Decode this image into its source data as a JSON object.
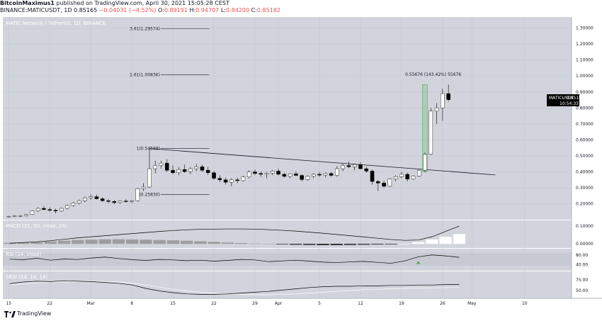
{
  "header": {
    "publisher": "BitcoinMaximus1",
    "published_text": "published on TradingView.com, April 30, 2021 15:05:28 CEST",
    "ticker": "BINANCE:MATICUSDT, 1D",
    "last": "0.85165",
    "change": "−0.04031 (−4.52%)",
    "o_label": "O:",
    "o_value": "0.89191",
    "h_label": "H:",
    "h_value": "0.94707",
    "l_label": "L:",
    "l_value": "0.84200",
    "c_label": "C:",
    "c_value": "0.85182"
  },
  "chart_title": "MATIC Network / TetherUS, 1D, BINANCE",
  "price_badge": {
    "symbol": "MATICUSDT",
    "price": "0.85182",
    "countdown": "10:54:33"
  },
  "indicators": {
    "macd": "MACD (21, 50, close, 24)",
    "rsi": "RSI (14, close)",
    "stoch": "SRSI (14, 14, 14)"
  },
  "footer": {
    "brand": "TradingView"
  },
  "colors": {
    "background": "#ffffff",
    "pane": "#d1d4dc",
    "bull": "#ffffff",
    "bear": "#000000",
    "axis_text": "#131722",
    "badge": "#000000",
    "green_marker": "#4caf50"
  },
  "chart_data": [
    {
      "type": "candlestick",
      "pane": "price",
      "y_ticks": [
        "1.30000",
        "1.20000",
        "1.10000",
        "1.00000",
        "0.90000",
        "0.80000",
        "0.70000",
        "0.60000",
        "0.50000",
        "0.40000",
        "0.30000",
        "0.20000"
      ],
      "y_tick_values": [
        1.3,
        1.2,
        1.1,
        1.0,
        0.9,
        0.8,
        0.7,
        0.6,
        0.5,
        0.4,
        0.3,
        0.2
      ],
      "ylim": [
        0.11,
        1.36
      ],
      "x_tick_labels": [
        "15",
        "22",
        "Mar",
        "8",
        "15",
        "22",
        "29",
        "Apr",
        "5",
        "12",
        "19",
        "26",
        "May",
        "10"
      ],
      "x_tick_days": [
        0,
        7,
        14,
        21,
        28,
        35,
        42,
        46,
        53,
        60,
        67,
        74,
        79,
        88
      ],
      "x_start_date": "2021-02-15",
      "xlim": [
        -1,
        96
      ],
      "candles": [
        [
          0.12,
          0.125,
          0.115,
          0.122
        ],
        [
          0.122,
          0.128,
          0.118,
          0.124
        ],
        [
          0.124,
          0.13,
          0.119,
          0.126
        ],
        [
          0.126,
          0.138,
          0.122,
          0.134
        ],
        [
          0.134,
          0.16,
          0.13,
          0.156
        ],
        [
          0.156,
          0.178,
          0.148,
          0.172
        ],
        [
          0.172,
          0.186,
          0.16,
          0.165
        ],
        [
          0.165,
          0.178,
          0.15,
          0.16
        ],
        [
          0.16,
          0.17,
          0.14,
          0.155
        ],
        [
          0.155,
          0.176,
          0.15,
          0.172
        ],
        [
          0.172,
          0.195,
          0.165,
          0.19
        ],
        [
          0.19,
          0.212,
          0.182,
          0.205
        ],
        [
          0.205,
          0.228,
          0.196,
          0.22
        ],
        [
          0.22,
          0.245,
          0.21,
          0.238
        ],
        [
          0.238,
          0.26,
          0.225,
          0.245
        ],
        [
          0.245,
          0.258,
          0.228,
          0.232
        ],
        [
          0.232,
          0.242,
          0.212,
          0.22
        ],
        [
          0.22,
          0.23,
          0.205,
          0.215
        ],
        [
          0.215,
          0.224,
          0.198,
          0.208
        ],
        [
          0.208,
          0.222,
          0.2,
          0.218
        ],
        [
          0.218,
          0.228,
          0.208,
          0.214
        ],
        [
          0.214,
          0.225,
          0.205,
          0.22
        ],
        [
          0.22,
          0.3,
          0.215,
          0.295
        ],
        [
          0.295,
          0.33,
          0.28,
          0.305
        ],
        [
          0.305,
          0.546,
          0.3,
          0.42
        ],
        [
          0.42,
          0.47,
          0.39,
          0.44
        ],
        [
          0.44,
          0.47,
          0.42,
          0.455
        ],
        [
          0.455,
          0.48,
          0.4,
          0.41
        ],
        [
          0.41,
          0.44,
          0.385,
          0.395
        ],
        [
          0.395,
          0.43,
          0.38,
          0.415
        ],
        [
          0.415,
          0.445,
          0.395,
          0.402
        ],
        [
          0.402,
          0.43,
          0.385,
          0.42
        ],
        [
          0.42,
          0.45,
          0.405,
          0.432
        ],
        [
          0.432,
          0.445,
          0.4,
          0.41
        ],
        [
          0.41,
          0.43,
          0.38,
          0.395
        ],
        [
          0.395,
          0.405,
          0.35,
          0.36
        ],
        [
          0.36,
          0.38,
          0.335,
          0.35
        ],
        [
          0.35,
          0.365,
          0.32,
          0.335
        ],
        [
          0.335,
          0.36,
          0.31,
          0.35
        ],
        [
          0.35,
          0.365,
          0.33,
          0.345
        ],
        [
          0.345,
          0.375,
          0.34,
          0.368
        ],
        [
          0.368,
          0.41,
          0.36,
          0.4
        ],
        [
          0.4,
          0.415,
          0.38,
          0.39
        ],
        [
          0.39,
          0.402,
          0.37,
          0.385
        ],
        [
          0.385,
          0.4,
          0.36,
          0.392
        ],
        [
          0.392,
          0.412,
          0.38,
          0.405
        ],
        [
          0.405,
          0.42,
          0.378,
          0.385
        ],
        [
          0.385,
          0.395,
          0.365,
          0.372
        ],
        [
          0.372,
          0.392,
          0.36,
          0.388
        ],
        [
          0.388,
          0.402,
          0.372,
          0.378
        ],
        [
          0.378,
          0.385,
          0.34,
          0.352
        ],
        [
          0.352,
          0.378,
          0.345,
          0.372
        ],
        [
          0.372,
          0.392,
          0.36,
          0.385
        ],
        [
          0.385,
          0.398,
          0.37,
          0.38
        ],
        [
          0.38,
          0.395,
          0.365,
          0.39
        ],
        [
          0.39,
          0.4,
          0.37,
          0.378
        ],
        [
          0.378,
          0.435,
          0.37,
          0.42
        ],
        [
          0.42,
          0.45,
          0.405,
          0.44
        ],
        [
          0.44,
          0.465,
          0.425,
          0.432
        ],
        [
          0.432,
          0.45,
          0.41,
          0.445
        ],
        [
          0.445,
          0.462,
          0.415,
          0.42
        ],
        [
          0.42,
          0.432,
          0.395,
          0.405
        ],
        [
          0.405,
          0.415,
          0.32,
          0.34
        ],
        [
          0.34,
          0.35,
          0.28,
          0.33
        ],
        [
          0.33,
          0.345,
          0.3,
          0.31
        ],
        [
          0.31,
          0.36,
          0.305,
          0.355
        ],
        [
          0.355,
          0.38,
          0.34,
          0.37
        ],
        [
          0.37,
          0.4,
          0.36,
          0.385
        ],
        [
          0.385,
          0.395,
          0.34,
          0.355
        ],
        [
          0.355,
          0.38,
          0.35,
          0.375
        ],
        [
          0.375,
          0.42,
          0.37,
          0.41
        ],
        [
          0.41,
          0.52,
          0.4,
          0.51
        ],
        [
          0.51,
          0.8,
          0.505,
          0.78
        ],
        [
          0.78,
          0.83,
          0.7,
          0.8
        ],
        [
          0.8,
          0.92,
          0.72,
          0.89
        ],
        [
          0.89,
          0.947,
          0.842,
          0.852
        ]
      ],
      "candle_start_day": 0,
      "annotations": {
        "fib_levels": [
          {
            "label": "3.61(1.29574)",
            "value": 1.29574
          },
          {
            "label": "2.61(1.00836)",
            "value": 1.00836
          },
          {
            "label": "1(0.54568)",
            "value": 0.54568
          },
          {
            "label": "0(0.25830)",
            "value": 0.2583
          }
        ],
        "measure_label": "0.55676 (143.42%) 55676",
        "trendline": [
          [
            24,
            0.546
          ],
          [
            78,
            0.395
          ]
        ]
      }
    },
    {
      "type": "bar",
      "pane": "macd",
      "y_ticks": [
        "0.10000",
        "0.00000"
      ],
      "y_tick_values": [
        0.1,
        0.0
      ],
      "ylim": [
        -0.015,
        0.12
      ],
      "macd_line": [
        0.004,
        0.008,
        0.012,
        0.018,
        0.026,
        0.034,
        0.04,
        0.046,
        0.052,
        0.058,
        0.064,
        0.07,
        0.075,
        0.079,
        0.082,
        0.083,
        0.084,
        0.084,
        0.083,
        0.08,
        0.076,
        0.072,
        0.066,
        0.06,
        0.053,
        0.046,
        0.039,
        0.032,
        0.025,
        0.02,
        0.022,
        0.04,
        0.07,
        0.1
      ],
      "histogram": [
        0.006,
        0.008,
        0.01,
        0.014,
        0.018,
        0.022,
        0.024,
        0.026,
        0.026,
        0.025,
        0.024,
        0.022,
        0.02,
        0.018,
        0.015,
        0.012,
        0.008,
        0.005,
        0.002,
        0.0,
        -0.002,
        -0.004,
        -0.005,
        -0.006,
        -0.006,
        -0.005,
        -0.004,
        -0.003,
        -0.002,
        0.0,
        0.01,
        0.025,
        0.04,
        0.055
      ]
    },
    {
      "type": "line",
      "pane": "rsi",
      "y_ticks": [
        "80.00",
        "40.00"
      ],
      "y_tick_values": [
        80,
        40
      ],
      "ylim": [
        20,
        100
      ],
      "values": [
        62,
        60,
        66,
        58,
        63,
        61,
        67,
        71,
        65,
        60,
        57,
        61,
        59,
        56,
        58,
        54,
        57,
        61,
        59,
        52,
        55,
        58,
        54,
        50,
        48,
        51,
        53,
        49,
        45,
        55,
        72,
        80,
        76,
        70
      ]
    },
    {
      "type": "line",
      "pane": "stoch",
      "y_ticks": [
        "75.00",
        "50.00"
      ],
      "y_tick_values": [
        75,
        50
      ],
      "ylim": [
        35,
        90
      ],
      "k": [
        66,
        70,
        72,
        71,
        73,
        72,
        71,
        69,
        67,
        63,
        55,
        49,
        45,
        42,
        41,
        41,
        42,
        44,
        46,
        48,
        51,
        54,
        57,
        59,
        60,
        60,
        61,
        61,
        62,
        62,
        63,
        63,
        64,
        64
      ],
      "d": [
        64,
        66,
        68,
        70,
        71,
        72,
        72,
        71,
        70,
        67,
        63,
        58,
        53,
        49,
        46,
        44,
        42,
        41,
        40,
        40,
        41,
        42,
        44,
        46,
        48,
        50,
        52,
        53,
        54,
        55,
        56,
        56,
        57,
        57
      ]
    }
  ]
}
